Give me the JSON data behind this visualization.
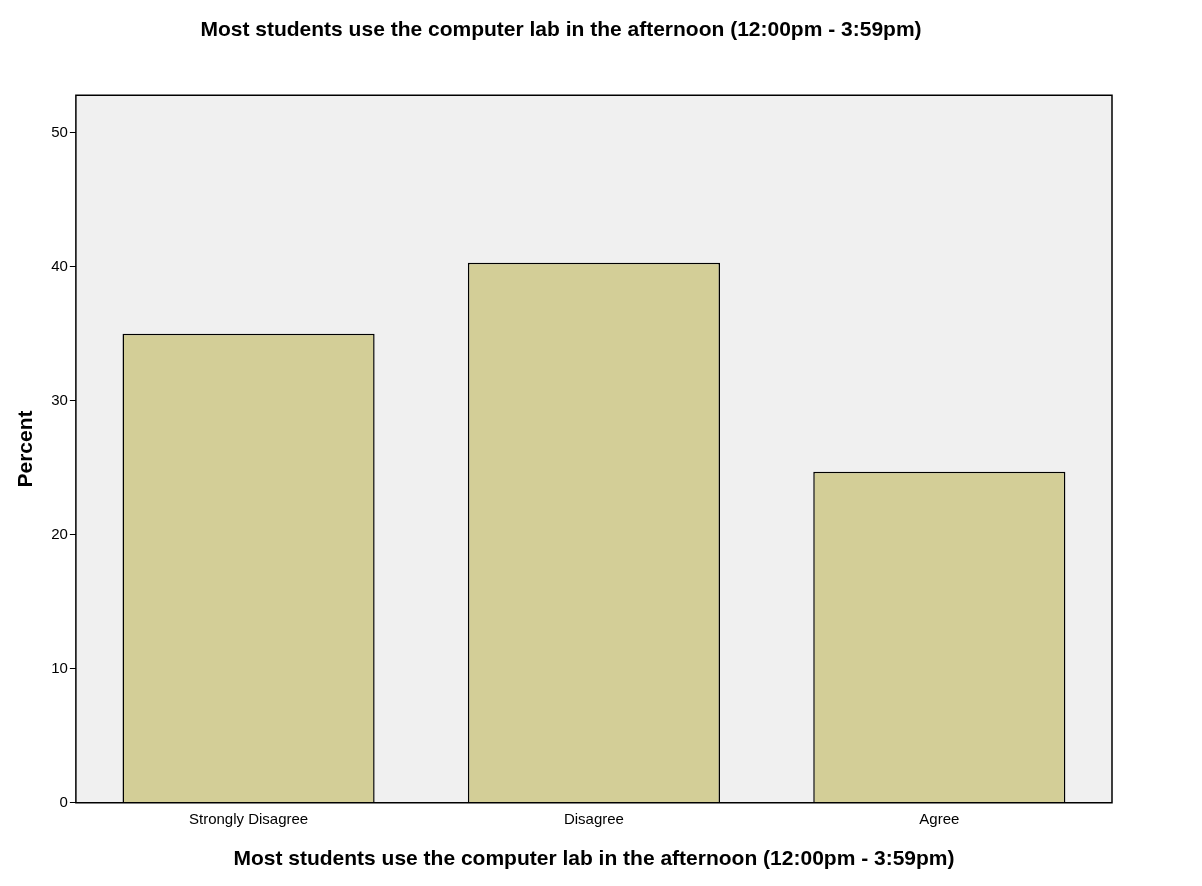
{
  "chart_data": {
    "type": "bar",
    "title": "Most students use the computer lab in the afternoon (12:00pm - 3:59pm)",
    "xlabel": "Most students use the computer lab in the afternoon (12:00pm - 3:59pm)",
    "ylabel": "Percent",
    "categories": [
      "Strongly Disagree",
      "Disagree",
      "Agree"
    ],
    "values": [
      35.0,
      40.3,
      24.7
    ],
    "color": "#d3ce97",
    "ylim": [
      0,
      52.8
    ],
    "yticks": [
      0,
      10,
      20,
      30,
      40,
      50
    ],
    "grid": false,
    "legend": false
  }
}
